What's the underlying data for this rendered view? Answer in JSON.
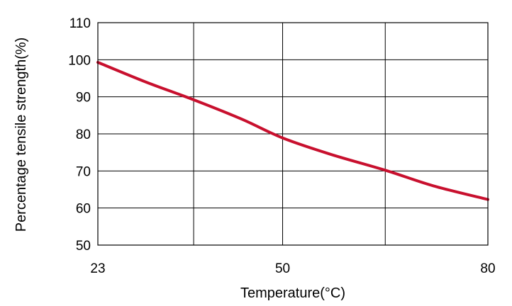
{
  "chart_data": {
    "type": "line",
    "title": "",
    "xlabel": "Temperature(°C)",
    "ylabel": "Percentage tensile strength(%)",
    "xlim": [
      23,
      80
    ],
    "ylim": [
      50,
      110
    ],
    "x_ticks": [
      23,
      50,
      80
    ],
    "x_gridlines": [
      23,
      37,
      50,
      65,
      80
    ],
    "y_ticks": [
      50,
      60,
      70,
      80,
      90,
      100,
      110
    ],
    "grid": true,
    "legend": "none",
    "series": [
      {
        "color": "#c8102e",
        "x": [
          23,
          30,
          37,
          44,
          50,
          57,
          65,
          72,
          80
        ],
        "y": [
          99.3,
          94,
          89.2,
          84,
          78.9,
          74.5,
          70.2,
          66,
          62.3
        ]
      }
    ]
  }
}
